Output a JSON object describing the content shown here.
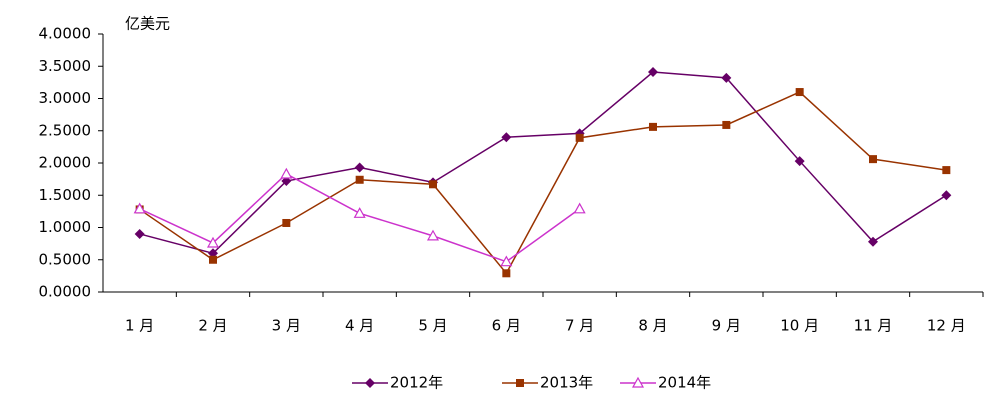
{
  "chart_data": {
    "type": "line",
    "unit_label": "亿美元",
    "categories": [
      "1 月",
      "2 月",
      "3 月",
      "4 月",
      "5 月",
      "6 月",
      "7 月",
      "8 月",
      "9 月",
      "10 月",
      "11 月",
      "12 月"
    ],
    "series": [
      {
        "name": "2012年",
        "color": "#660066",
        "marker": "diamond",
        "values": [
          0.9,
          0.6,
          1.72,
          1.93,
          1.7,
          2.4,
          2.46,
          3.41,
          3.32,
          2.03,
          0.78,
          1.5
        ]
      },
      {
        "name": "2013年",
        "color": "#993300",
        "marker": "square",
        "values": [
          1.28,
          0.5,
          1.07,
          1.74,
          1.67,
          0.29,
          2.39,
          2.56,
          2.59,
          3.1,
          2.06,
          1.89
        ]
      },
      {
        "name": "2014年",
        "color": "#cc33cc",
        "marker": "triangle",
        "values": [
          1.29,
          0.76,
          1.83,
          1.22,
          0.87,
          0.47,
          1.29,
          null,
          null,
          null,
          null,
          null
        ]
      }
    ],
    "ylim": [
      0,
      4
    ],
    "yticks": [
      {
        "value": 0,
        "label": "0.0000"
      },
      {
        "value": 0.5,
        "label": "0.5000"
      },
      {
        "value": 1,
        "label": "1.0000"
      },
      {
        "value": 1.5,
        "label": "1.5000"
      },
      {
        "value": 2,
        "label": "2.0000"
      },
      {
        "value": 2.5,
        "label": "2.5000"
      },
      {
        "value": 3,
        "label": "3.0000"
      },
      {
        "value": 3.5,
        "label": "3.5000"
      },
      {
        "value": 4,
        "label": "4.0000"
      }
    ],
    "grid": false,
    "legend": "bottom"
  }
}
